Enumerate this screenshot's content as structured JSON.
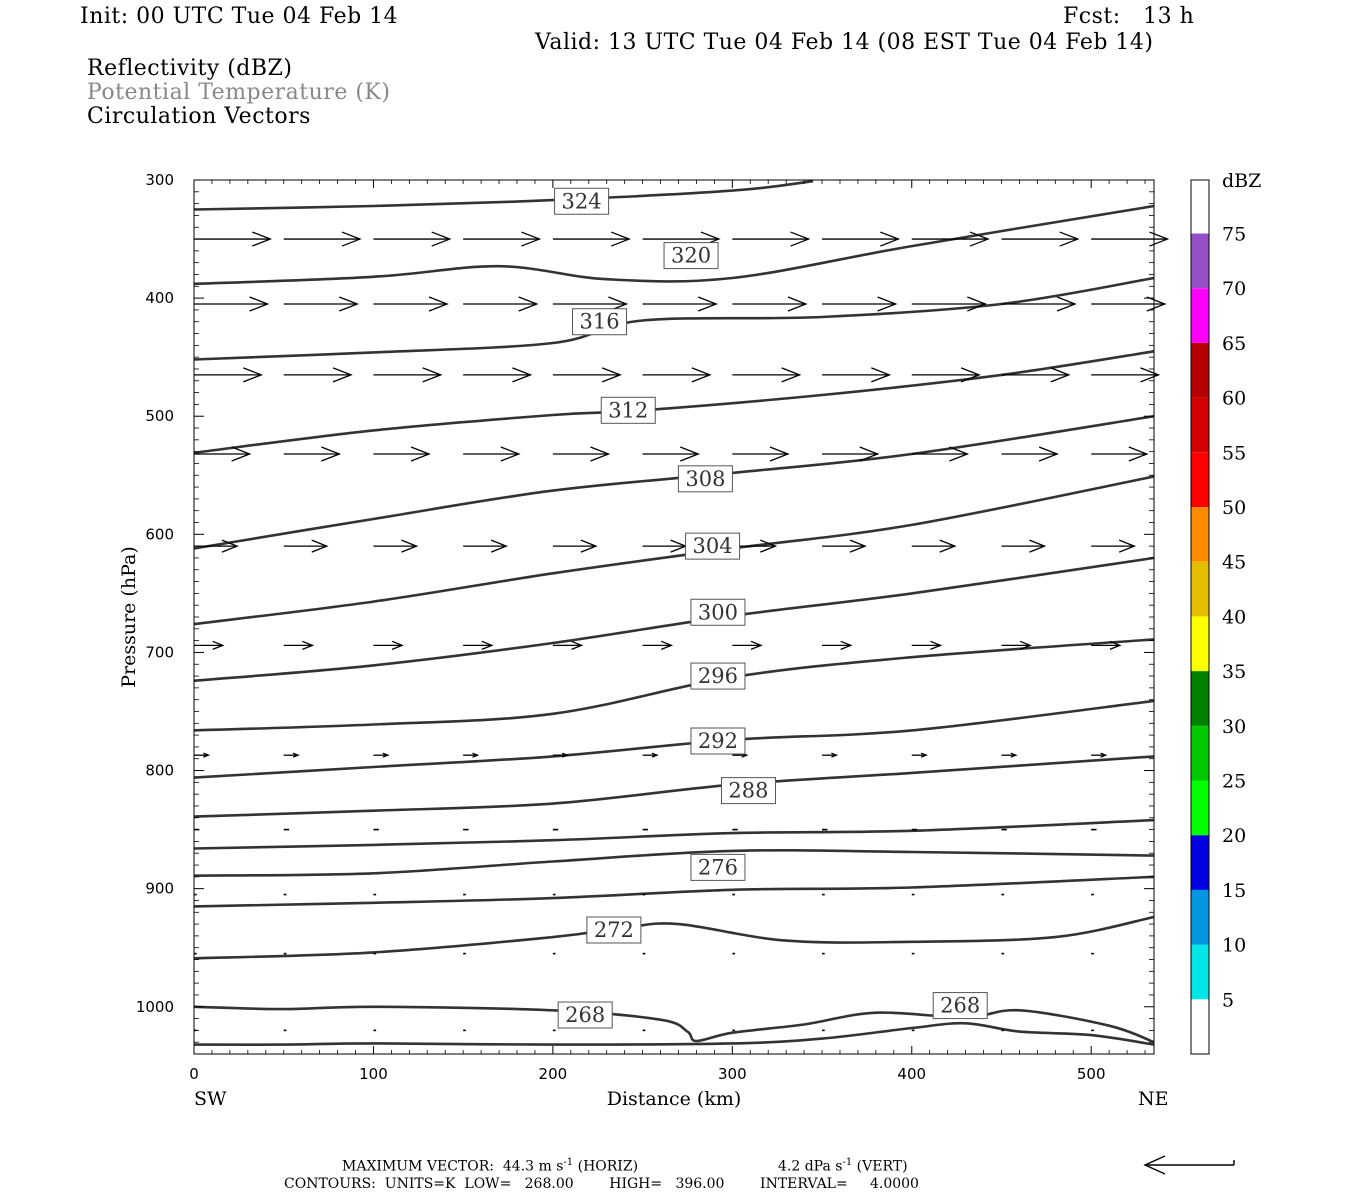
{
  "header": {
    "init": "Init: 00 UTC Tue 04 Feb 14",
    "fcst": "Fcst:   13 h",
    "valid": "Valid: 13 UTC Tue 04 Feb 14 (08 EST Tue 04 Feb 14)",
    "field1": "Reflectivity (dBZ)",
    "field2": "Potential Temperature (K)",
    "field3": "Circulation Vectors"
  },
  "chart_data": {
    "type": "contour",
    "x_axis": {
      "label": "Distance (km)",
      "range": [
        0,
        535
      ],
      "ticks": [
        0,
        100,
        200,
        300,
        400,
        500
      ],
      "left_end_label": "SW",
      "right_end_label": "NE"
    },
    "y_axis": {
      "label": "Pressure (hPa)",
      "range": [
        300,
        1040
      ],
      "inverted": true,
      "ticks": [
        300,
        400,
        500,
        600,
        700,
        800,
        900,
        1000
      ]
    },
    "colorbar": {
      "title": "dBZ",
      "levels": [
        5,
        10,
        15,
        20,
        25,
        30,
        35,
        40,
        45,
        50,
        55,
        60,
        65,
        70,
        75
      ],
      "colors": [
        "#00e5e5",
        "#0096e0",
        "#0000e0",
        "#00ff00",
        "#00c800",
        "#008200",
        "#ffff00",
        "#e6be00",
        "#ff8c00",
        "#ff0000",
        "#d20000",
        "#b40000",
        "#ff00ff",
        "#9650c8",
        "#ffffff"
      ]
    },
    "theta_contours": [
      {
        "label": "324",
        "x": [
          0,
          100,
          200,
          300,
          345
        ],
        "p": [
          325,
          322,
          317,
          309,
          301
        ],
        "label_at": [
          216,
          318
        ]
      },
      {
        "label": "320",
        "x": [
          0,
          100,
          170,
          230,
          300,
          400,
          535
        ],
        "p": [
          388,
          382,
          373,
          384,
          383,
          356,
          322
        ],
        "label_at": [
          277,
          364
        ]
      },
      {
        "label": "316",
        "x": [
          0,
          100,
          200,
          250,
          350,
          450,
          535
        ],
        "p": [
          452,
          446,
          438,
          419,
          416,
          405,
          383
        ],
        "label_at": [
          226,
          420
        ]
      },
      {
        "label": "312",
        "x": [
          0,
          100,
          200,
          250,
          350,
          450,
          535
        ],
        "p": [
          531,
          512,
          499,
          495,
          482,
          465,
          445
        ],
        "label_at": [
          242,
          495
        ]
      },
      {
        "label": "308",
        "x": [
          0,
          100,
          200,
          300,
          400,
          535
        ],
        "p": [
          612,
          587,
          563,
          548,
          532,
          500
        ],
        "label_at": [
          285,
          553
        ]
      },
      {
        "label": "304",
        "x": [
          0,
          100,
          200,
          300,
          400,
          535
        ],
        "p": [
          676,
          657,
          633,
          612,
          592,
          551
        ],
        "label_at": [
          289,
          610
        ]
      },
      {
        "label": "300",
        "x": [
          0,
          100,
          200,
          300,
          400,
          535
        ],
        "p": [
          724,
          711,
          692,
          669,
          650,
          620
        ],
        "label_at": [
          292,
          666
        ]
      },
      {
        "label": "296",
        "x": [
          0,
          100,
          200,
          300,
          400,
          535
        ],
        "p": [
          766,
          761,
          752,
          721,
          704,
          689
        ],
        "label_at": [
          292,
          720
        ]
      },
      {
        "label": "292",
        "x": [
          0,
          100,
          200,
          300,
          400,
          535
        ],
        "p": [
          806,
          797,
          788,
          774,
          766,
          741
        ],
        "label_at": [
          292,
          775
        ]
      },
      {
        "label": "288",
        "x": [
          0,
          100,
          200,
          300,
          400,
          535
        ],
        "p": [
          839,
          834,
          828,
          812,
          802,
          788
        ],
        "label_at": [
          309,
          817
        ]
      },
      {
        "label": "",
        "x": [
          0,
          100,
          200,
          300,
          400,
          535
        ],
        "p": [
          866,
          863,
          859,
          853,
          851,
          842
        ],
        "label_at": null
      },
      {
        "label": "276",
        "x": [
          0,
          100,
          200,
          300,
          400,
          535
        ],
        "p": [
          889,
          887,
          877,
          868,
          869,
          872
        ],
        "label_at": [
          292,
          882
        ]
      },
      {
        "label": "",
        "x": [
          0,
          100,
          200,
          300,
          400,
          535
        ],
        "p": [
          915,
          912,
          908,
          901,
          899,
          890
        ],
        "label_at": null
      },
      {
        "label": "272",
        "x": [
          0,
          100,
          200,
          240,
          270,
          330,
          400,
          480,
          535
        ],
        "p": [
          959,
          954,
          941,
          933,
          930,
          944,
          945,
          941,
          924
        ],
        "label_at": [
          234,
          935
        ]
      },
      {
        "label": "268",
        "x": [
          0,
          50,
          100,
          200,
          260,
          275,
          280,
          300,
          340,
          380,
          430,
          460,
          510,
          535
        ],
        "p": [
          1000,
          1002,
          1000,
          1003,
          1011,
          1021,
          1029,
          1022,
          1015,
          1005,
          1009,
          1003,
          1016,
          1030
        ],
        "label_at": [
          218,
          1007
        ]
      },
      {
        "label": "268",
        "x": [
          0,
          50,
          100,
          200,
          300,
          350,
          400,
          430,
          460,
          500,
          535
        ],
        "p": [
          1032,
          1032,
          1031,
          1032,
          1031,
          1027,
          1018,
          1014,
          1021,
          1024,
          1032
        ],
        "label_at": [
          427,
          999
        ]
      }
    ],
    "vector_rows": [
      {
        "p": 350,
        "u": 0.85,
        "w": 0.0
      },
      {
        "p": 405,
        "u": 0.82,
        "w": 0.0
      },
      {
        "p": 465,
        "u": 0.75,
        "w": 0.0
      },
      {
        "p": 532,
        "u": 0.62,
        "w": 0.0
      },
      {
        "p": 610,
        "u": 0.48,
        "w": 0.0
      },
      {
        "p": 694,
        "u": 0.32,
        "w": 0.0
      },
      {
        "p": 787,
        "u": 0.16,
        "w": 0.0
      },
      {
        "p": 850,
        "u": 0.06,
        "w": 0.0
      },
      {
        "p": 905,
        "u": 0.03,
        "w": 0.0
      },
      {
        "p": 955,
        "u": 0.03,
        "w": 0.0
      },
      {
        "p": 1020,
        "u": 0.03,
        "w": 0.0
      }
    ],
    "vector_columns_km": [
      0,
      50,
      100,
      150,
      200,
      250,
      300,
      350,
      400,
      450,
      500
    ]
  },
  "footer": {
    "max_vector": "MAXIMUM VECTOR:  44.3 m s",
    "exp1": "-1",
    "horiz": " (HORIZ)",
    "vert_val": "4.2 dPa s",
    "exp2": "-1",
    "vert": " (VERT)",
    "contours": "CONTOURS:  UNITS=K  LOW=   268.00        HIGH=   396.00        INTERVAL=     4.0000"
  }
}
